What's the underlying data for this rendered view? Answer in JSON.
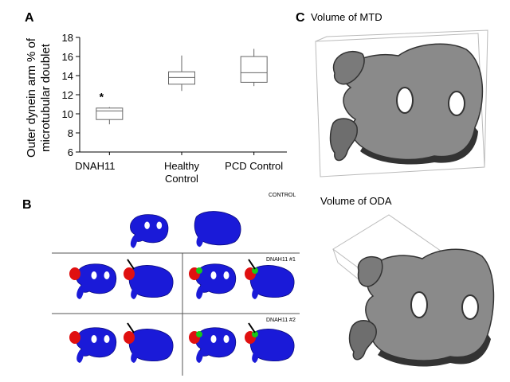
{
  "panels": {
    "a": "A",
    "b": "B",
    "c": "C"
  },
  "chart_data": {
    "type": "box",
    "ylabel_line1": "Outer dynein arm % of",
    "ylabel_line2": "microtubular doublet",
    "ylim": [
      6,
      18
    ],
    "yticks": [
      6,
      8,
      10,
      12,
      14,
      16,
      18
    ],
    "categories": [
      "DNAH11",
      "Healthy Control",
      "PCD Control"
    ],
    "category_lines": [
      [
        "DNAH11"
      ],
      [
        "Healthy",
        "Control"
      ],
      [
        "PCD Control"
      ]
    ],
    "boxes": [
      {
        "min": 8.9,
        "q1": 9.4,
        "median": 10.3,
        "q3": 10.6,
        "max": 10.7,
        "annotation": "*"
      },
      {
        "min": 12.4,
        "q1": 13.1,
        "median": 13.8,
        "q3": 14.4,
        "max": 16.1,
        "annotation": ""
      },
      {
        "min": 12.9,
        "q1": 13.3,
        "median": 14.3,
        "q3": 16.0,
        "max": 16.8,
        "annotation": ""
      }
    ]
  },
  "panel_b": {
    "control_label": "CONTROL",
    "row1_label": "DNAH11 #1",
    "row2_label": "DNAH11 #2",
    "colors": {
      "model": "#1a1ad8",
      "highlight_red": "#e01010",
      "highlight_green": "#18c818"
    }
  },
  "panel_c": {
    "caption_top": "Volume of MTD",
    "caption_bottom": "Volume of ODA",
    "colors": {
      "surface": "#8c8c8c",
      "shadow": "#3a3a3a"
    }
  }
}
